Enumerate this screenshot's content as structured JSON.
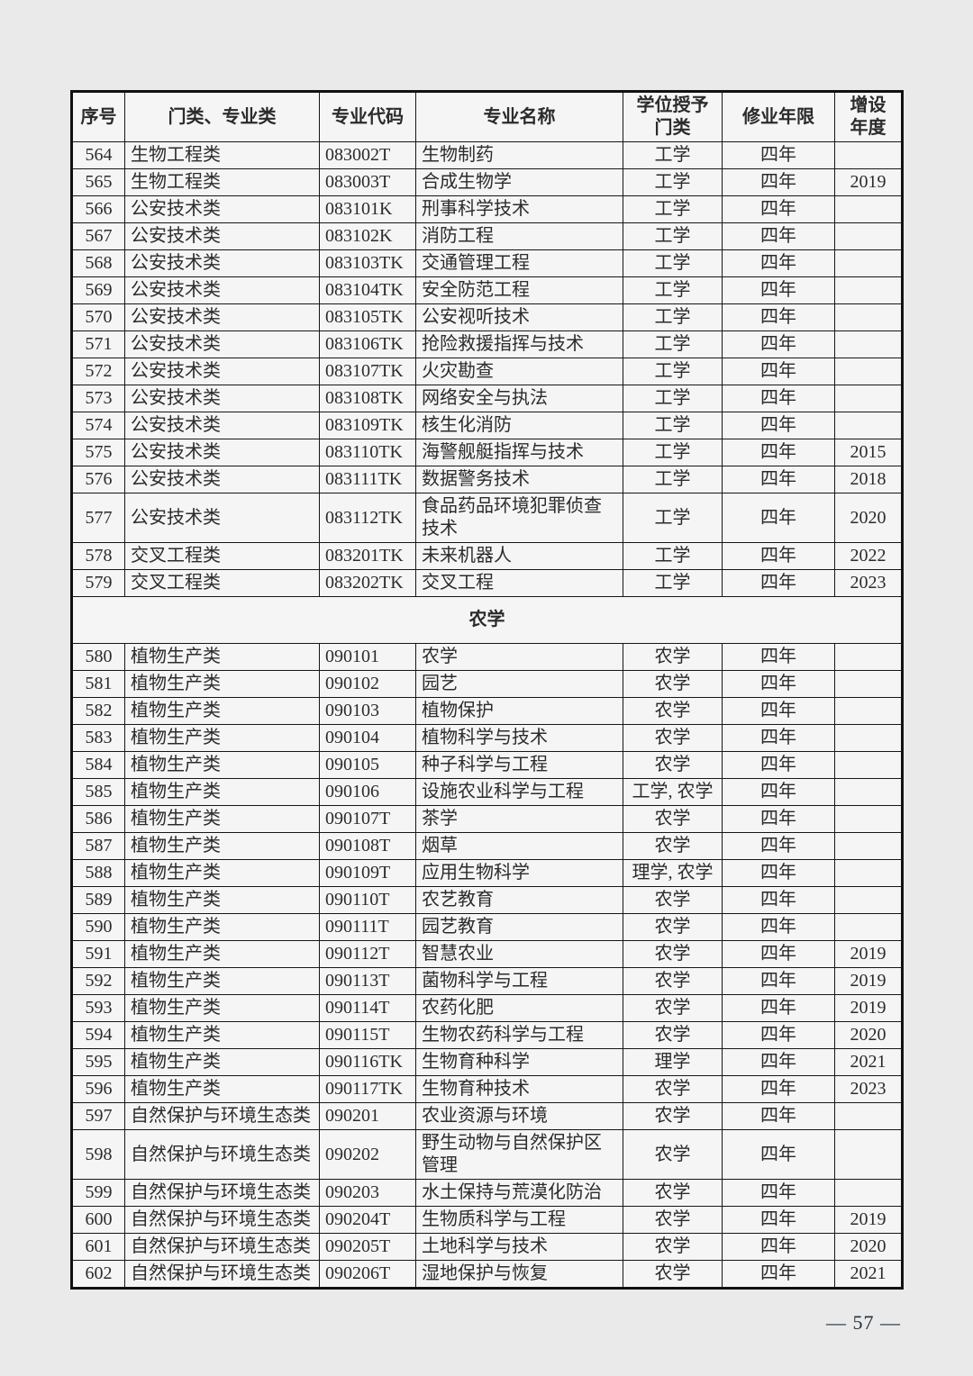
{
  "page": {
    "number_label": "— 57 —"
  },
  "table": {
    "headers": [
      "序号",
      "门类、专业类",
      "专业代码",
      "专业名称",
      "学位授予\n门类",
      "修业年限",
      "增设\n年度"
    ],
    "rows": [
      {
        "no": "564",
        "category": "生物工程类",
        "code": "083002T",
        "name": "生物制药",
        "degree": "工学",
        "years": "四年",
        "year_added": ""
      },
      {
        "no": "565",
        "category": "生物工程类",
        "code": "083003T",
        "name": "合成生物学",
        "degree": "工学",
        "years": "四年",
        "year_added": "2019"
      },
      {
        "no": "566",
        "category": "公安技术类",
        "code": "083101K",
        "name": "刑事科学技术",
        "degree": "工学",
        "years": "四年",
        "year_added": ""
      },
      {
        "no": "567",
        "category": "公安技术类",
        "code": "083102K",
        "name": "消防工程",
        "degree": "工学",
        "years": "四年",
        "year_added": ""
      },
      {
        "no": "568",
        "category": "公安技术类",
        "code": "083103TK",
        "name": "交通管理工程",
        "degree": "工学",
        "years": "四年",
        "year_added": ""
      },
      {
        "no": "569",
        "category": "公安技术类",
        "code": "083104TK",
        "name": "安全防范工程",
        "degree": "工学",
        "years": "四年",
        "year_added": ""
      },
      {
        "no": "570",
        "category": "公安技术类",
        "code": "083105TK",
        "name": "公安视听技术",
        "degree": "工学",
        "years": "四年",
        "year_added": ""
      },
      {
        "no": "571",
        "category": "公安技术类",
        "code": "083106TK",
        "name": "抢险救援指挥与技术",
        "degree": "工学",
        "years": "四年",
        "year_added": ""
      },
      {
        "no": "572",
        "category": "公安技术类",
        "code": "083107TK",
        "name": "火灾勘查",
        "degree": "工学",
        "years": "四年",
        "year_added": ""
      },
      {
        "no": "573",
        "category": "公安技术类",
        "code": "083108TK",
        "name": "网络安全与执法",
        "degree": "工学",
        "years": "四年",
        "year_added": ""
      },
      {
        "no": "574",
        "category": "公安技术类",
        "code": "083109TK",
        "name": "核生化消防",
        "degree": "工学",
        "years": "四年",
        "year_added": ""
      },
      {
        "no": "575",
        "category": "公安技术类",
        "code": "083110TK",
        "name": "海警舰艇指挥与技术",
        "degree": "工学",
        "years": "四年",
        "year_added": "2015"
      },
      {
        "no": "576",
        "category": "公安技术类",
        "code": "083111TK",
        "name": "数据警务技术",
        "degree": "工学",
        "years": "四年",
        "year_added": "2018"
      },
      {
        "no": "577",
        "category": "公安技术类",
        "code": "083112TK",
        "name": "食品药品环境犯罪侦查技术",
        "degree": "工学",
        "years": "四年",
        "year_added": "2020"
      },
      {
        "no": "578",
        "category": "交叉工程类",
        "code": "083201TK",
        "name": "未来机器人",
        "degree": "工学",
        "years": "四年",
        "year_added": "2022"
      },
      {
        "no": "579",
        "category": "交叉工程类",
        "code": "083202TK",
        "name": "交叉工程",
        "degree": "工学",
        "years": "四年",
        "year_added": "2023"
      },
      {
        "section": "农学"
      },
      {
        "no": "580",
        "category": "植物生产类",
        "code": "090101",
        "name": "农学",
        "degree": "农学",
        "years": "四年",
        "year_added": ""
      },
      {
        "no": "581",
        "category": "植物生产类",
        "code": "090102",
        "name": "园艺",
        "degree": "农学",
        "years": "四年",
        "year_added": ""
      },
      {
        "no": "582",
        "category": "植物生产类",
        "code": "090103",
        "name": "植物保护",
        "degree": "农学",
        "years": "四年",
        "year_added": ""
      },
      {
        "no": "583",
        "category": "植物生产类",
        "code": "090104",
        "name": "植物科学与技术",
        "degree": "农学",
        "years": "四年",
        "year_added": ""
      },
      {
        "no": "584",
        "category": "植物生产类",
        "code": "090105",
        "name": "种子科学与工程",
        "degree": "农学",
        "years": "四年",
        "year_added": ""
      },
      {
        "no": "585",
        "category": "植物生产类",
        "code": "090106",
        "name": "设施农业科学与工程",
        "degree": "工学, 农学",
        "years": "四年",
        "year_added": ""
      },
      {
        "no": "586",
        "category": "植物生产类",
        "code": "090107T",
        "name": "茶学",
        "degree": "农学",
        "years": "四年",
        "year_added": ""
      },
      {
        "no": "587",
        "category": "植物生产类",
        "code": "090108T",
        "name": "烟草",
        "degree": "农学",
        "years": "四年",
        "year_added": ""
      },
      {
        "no": "588",
        "category": "植物生产类",
        "code": "090109T",
        "name": "应用生物科学",
        "degree": "理学, 农学",
        "years": "四年",
        "year_added": ""
      },
      {
        "no": "589",
        "category": "植物生产类",
        "code": "090110T",
        "name": "农艺教育",
        "degree": "农学",
        "years": "四年",
        "year_added": ""
      },
      {
        "no": "590",
        "category": "植物生产类",
        "code": "090111T",
        "name": "园艺教育",
        "degree": "农学",
        "years": "四年",
        "year_added": ""
      },
      {
        "no": "591",
        "category": "植物生产类",
        "code": "090112T",
        "name": "智慧农业",
        "degree": "农学",
        "years": "四年",
        "year_added": "2019"
      },
      {
        "no": "592",
        "category": "植物生产类",
        "code": "090113T",
        "name": "菌物科学与工程",
        "degree": "农学",
        "years": "四年",
        "year_added": "2019"
      },
      {
        "no": "593",
        "category": "植物生产类",
        "code": "090114T",
        "name": "农药化肥",
        "degree": "农学",
        "years": "四年",
        "year_added": "2019"
      },
      {
        "no": "594",
        "category": "植物生产类",
        "code": "090115T",
        "name": "生物农药科学与工程",
        "degree": "农学",
        "years": "四年",
        "year_added": "2020"
      },
      {
        "no": "595",
        "category": "植物生产类",
        "code": "090116TK",
        "name": "生物育种科学",
        "degree": "理学",
        "years": "四年",
        "year_added": "2021"
      },
      {
        "no": "596",
        "category": "植物生产类",
        "code": "090117TK",
        "name": "生物育种技术",
        "degree": "农学",
        "years": "四年",
        "year_added": "2023"
      },
      {
        "no": "597",
        "category": "自然保护与环境生态类",
        "code": "090201",
        "name": "农业资源与环境",
        "degree": "农学",
        "years": "四年",
        "year_added": ""
      },
      {
        "no": "598",
        "category": "自然保护与环境生态类",
        "code": "090202",
        "name": "野生动物与自然保护区管理",
        "degree": "农学",
        "years": "四年",
        "year_added": ""
      },
      {
        "no": "599",
        "category": "自然保护与环境生态类",
        "code": "090203",
        "name": "水土保持与荒漠化防治",
        "degree": "农学",
        "years": "四年",
        "year_added": ""
      },
      {
        "no": "600",
        "category": "自然保护与环境生态类",
        "code": "090204T",
        "name": "生物质科学与工程",
        "degree": "农学",
        "years": "四年",
        "year_added": "2019"
      },
      {
        "no": "601",
        "category": "自然保护与环境生态类",
        "code": "090205T",
        "name": "土地科学与技术",
        "degree": "农学",
        "years": "四年",
        "year_added": "2020"
      },
      {
        "no": "602",
        "category": "自然保护与环境生态类",
        "code": "090206T",
        "name": "湿地保护与恢复",
        "degree": "农学",
        "years": "四年",
        "year_added": "2021"
      }
    ]
  }
}
